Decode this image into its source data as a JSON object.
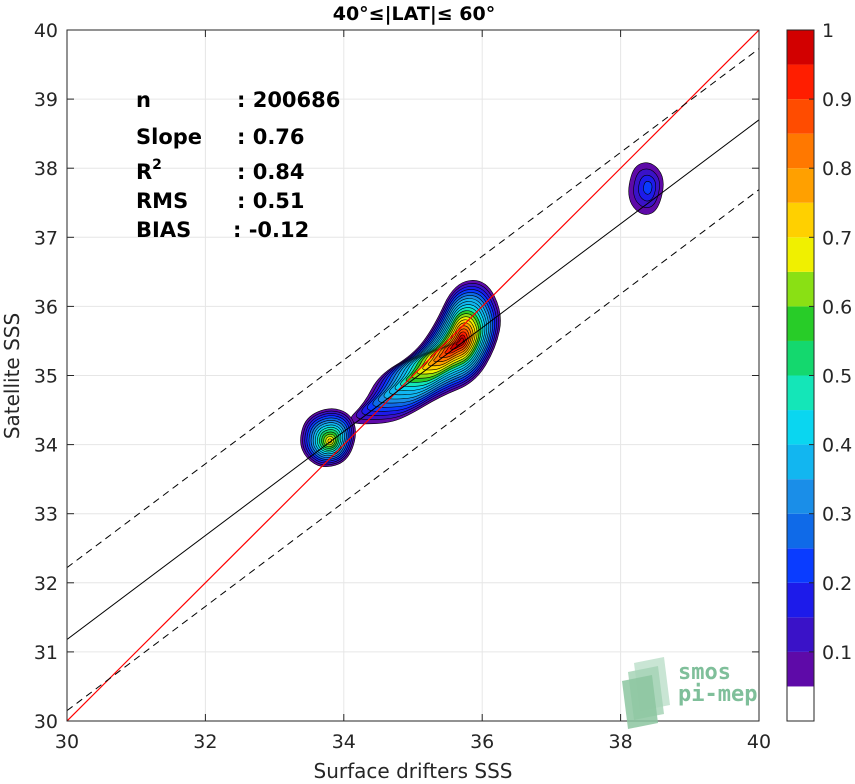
{
  "chart_data": {
    "type": "heatmap",
    "subtype": "density-contour-scatter",
    "title": "40°≤|LAT|≤ 60°",
    "xlabel": "Surface drifters SSS",
    "ylabel": "Satellite SSS",
    "xlim": [
      30,
      40
    ],
    "ylim": [
      30,
      40
    ],
    "xticks": [
      "30",
      "32",
      "34",
      "36",
      "38",
      "40"
    ],
    "yticks": [
      "30",
      "31",
      "32",
      "33",
      "34",
      "35",
      "36",
      "37",
      "38",
      "39",
      "40"
    ],
    "grid": true,
    "stats": [
      {
        "label": "n",
        "value": ": 200686"
      },
      {
        "label": "Slope",
        "value": ": 0.76"
      },
      {
        "label": "R",
        "sup": "2",
        "value": ": 0.84"
      },
      {
        "label": "RMS",
        "value": ": 0.51"
      },
      {
        "label": "BIAS",
        "value": ": -0.12"
      }
    ],
    "lines": {
      "identity": {
        "slope": 1,
        "intercept": 0,
        "color": "#ff0000"
      },
      "regression": {
        "points": [
          [
            30,
            31.18
          ],
          [
            40,
            38.7
          ]
        ],
        "color": "#000000"
      },
      "upper_bound": {
        "points": [
          [
            30,
            32.22
          ],
          [
            40,
            39.73
          ]
        ],
        "color": "#000000",
        "dashed": true
      },
      "lower_bound": {
        "points": [
          [
            30,
            30.15
          ],
          [
            40,
            37.69
          ]
        ],
        "color": "#000000",
        "dashed": true
      }
    },
    "density_blobs": [
      {
        "x": 35.6,
        "y": 35.3,
        "peak": 1.0
      },
      {
        "x": 33.8,
        "y": 34.05,
        "peak": 0.72
      },
      {
        "x": 38.4,
        "y": 37.72,
        "peak": 0.2
      }
    ],
    "colorbar": {
      "ticks": [
        "0.1",
        "0.2",
        "0.3",
        "0.4",
        "0.5",
        "0.6",
        "0.7",
        "0.8",
        "0.9",
        "1"
      ],
      "levels": [
        0,
        0.05,
        0.1,
        0.15,
        0.2,
        0.25,
        0.3,
        0.35,
        0.4,
        0.45,
        0.5,
        0.55,
        0.6,
        0.65,
        0.7,
        0.75,
        0.8,
        0.85,
        0.9,
        0.95,
        1.0
      ],
      "colors": [
        "#ffffff",
        "#5e0aa8",
        "#3a12c8",
        "#1d1bea",
        "#0a3cff",
        "#0f6ae8",
        "#1a8ee8",
        "#12b6f0",
        "#0ad6f0",
        "#14e6b8",
        "#14d86e",
        "#28cc28",
        "#8ae014",
        "#f0f000",
        "#ffd000",
        "#ffa000",
        "#ff7800",
        "#ff4c00",
        "#ff1e00",
        "#d20000",
        "#8c0000"
      ]
    }
  },
  "logo": {
    "line1": "smos",
    "line2": "pi-mep"
  }
}
